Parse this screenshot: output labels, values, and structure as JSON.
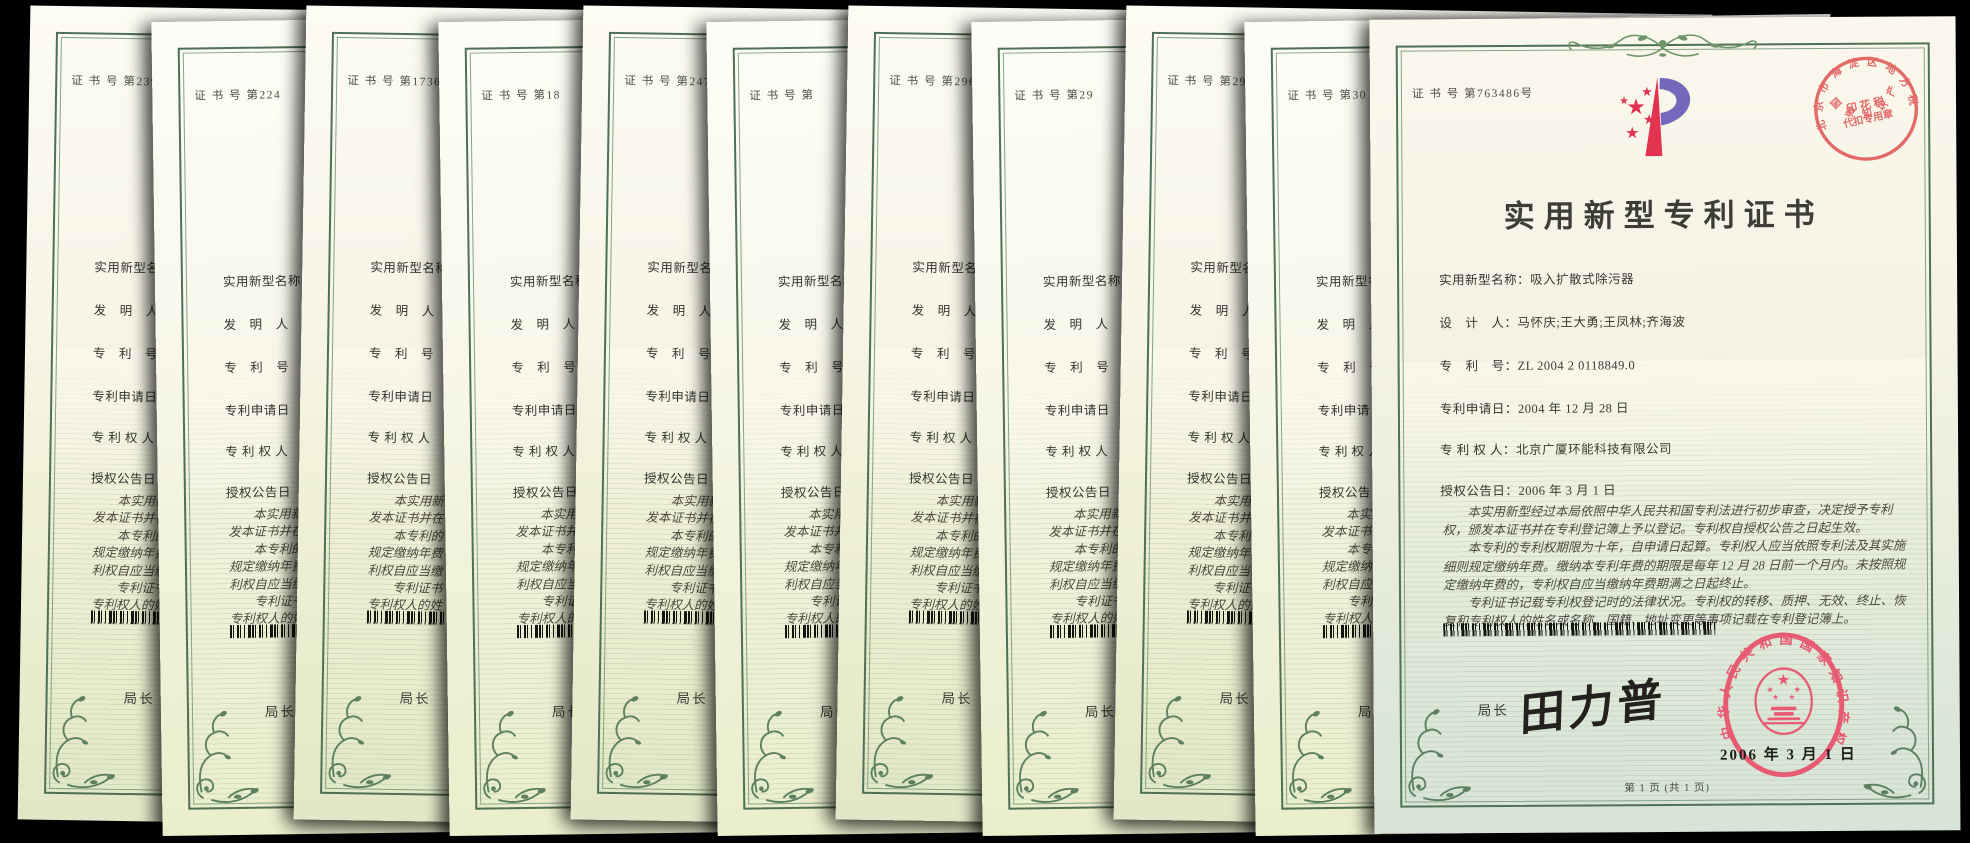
{
  "stack": {
    "labels": {
      "cert_no_prefix": "证 书 号",
      "field_name": "实用新型名称",
      "field_inventor": "发　明　人",
      "field_patent_no": "专　利　号",
      "field_filing_date": "专利申请日",
      "field_patentee": "专 利 权 人",
      "field_grant_date": "授权公告日",
      "director": "局长",
      "body_fragments": [
        "本实用新",
        "发本证书并在",
        "本专利的",
        "规定缴纳年费",
        "利权自应当缴",
        "专利证书",
        "专利权人的姓"
      ]
    },
    "certificates": [
      {
        "cert_no": "第239"
      },
      {
        "cert_no": "第224"
      },
      {
        "cert_no": "第1736"
      },
      {
        "cert_no": "第18"
      },
      {
        "cert_no": "第247"
      },
      {
        "cert_no": "第"
      },
      {
        "cert_no": "第296"
      },
      {
        "cert_no": "第29"
      },
      {
        "cert_no": "第296"
      },
      {
        "cert_no": "第30"
      }
    ]
  },
  "main": {
    "cert_no_prefix": "证 书 号",
    "cert_no": "第763486号",
    "title": "实用新型专利证书",
    "fields": [
      {
        "label": "实用新型名称：",
        "value": "吸入扩散式除污器"
      },
      {
        "label": "设　计　人：",
        "value": "马怀庆;王大勇;王凤林;齐海波"
      },
      {
        "label": "专　利　号：",
        "value": "ZL 2004 2 0118849.0"
      },
      {
        "label": "专利申请日：",
        "value": "2004 年 12 月 28 日"
      },
      {
        "label": "专 利 权 人：",
        "value": "北京广厦环能科技有限公司"
      },
      {
        "label": "授权公告日：",
        "value": "2006 年 3 月 1 日"
      }
    ],
    "paragraphs": [
      "本实用新型经过本局依照中华人民共和国专利法进行初步审查，决定授予专利权，颁发本证书并在专利登记簿上予以登记。专利权自授权公告之日起生效。",
      "本专利的专利权期限为十年，自申请日起算。专利权人应当依照专利法及其实施细则规定缴纳年费。缴纳本专利年费的期限是每年 12 月 28 日前一个月内。未按照规定缴纳年费的，专利权自应当缴纳年费期满之日起终止。",
      "专利证书记载专利权登记时的法律状况。专利权的转移、质押、无效、终止、恢复和专利权人的姓名或名称、国籍、地址变更等事项记载在专利登记簿上。"
    ],
    "director_label": "局长",
    "signature": "田力普",
    "issue_date": "2006 年 3 月 1 日",
    "page_footer": "第 1 页 (共 1 页)",
    "seal_text": "中华人民共和国国家知识产权局",
    "stamp": {
      "arc_top": "北京市海淀区地方税务局",
      "arc_bottom": "国家知识产权局",
      "center_line1": "印 花 税",
      "center_line2": "代扣专用章"
    },
    "colors": {
      "border_green": "#4e7054",
      "seal_red": "#e8516c",
      "stamp_red": "#df5858",
      "logo_red": "#e23450",
      "logo_blue": "#7468bd"
    }
  }
}
